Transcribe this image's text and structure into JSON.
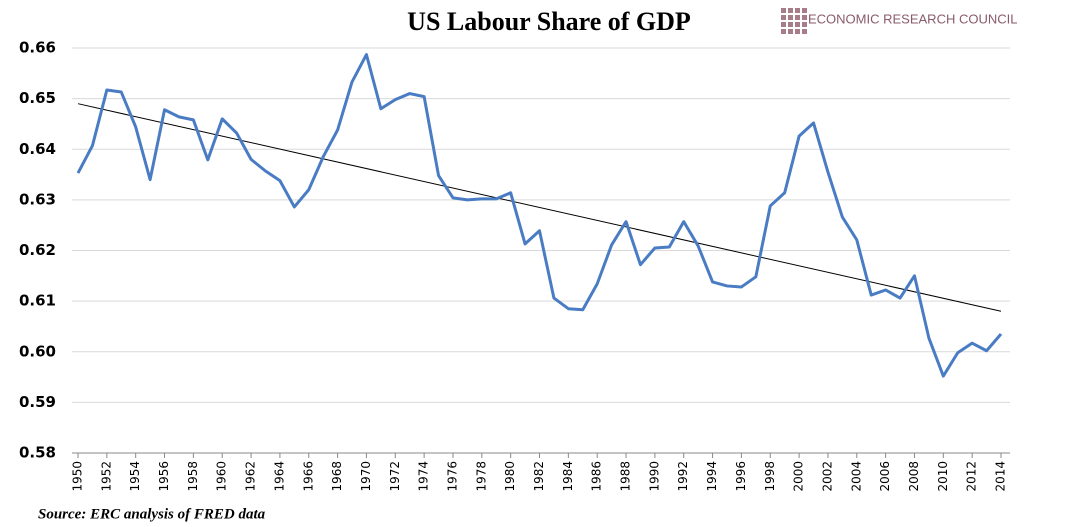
{
  "chart_data": {
    "type": "line",
    "title": "US Labour Share of GDP",
    "brand": "ECONOMIC RESEARCH COUNCIL",
    "source": "Source: ERC analysis of FRED data",
    "x": [
      1950,
      1951,
      1952,
      1953,
      1954,
      1955,
      1956,
      1957,
      1958,
      1959,
      1960,
      1961,
      1962,
      1963,
      1964,
      1965,
      1966,
      1967,
      1968,
      1969,
      1970,
      1971,
      1972,
      1973,
      1974,
      1975,
      1976,
      1977,
      1978,
      1979,
      1980,
      1981,
      1982,
      1983,
      1984,
      1985,
      1986,
      1987,
      1988,
      1989,
      1990,
      1991,
      1992,
      1993,
      1994,
      1995,
      1996,
      1997,
      1998,
      1999,
      2000,
      2001,
      2002,
      2003,
      2004,
      2005,
      2006,
      2007,
      2008,
      2009,
      2010,
      2011,
      2012,
      2013,
      2014
    ],
    "series": [
      {
        "color": "#4a7cc4",
        "values": [
          0.6353,
          0.6407,
          0.6517,
          0.6513,
          0.6444,
          0.634,
          0.6478,
          0.6464,
          0.6458,
          0.6379,
          0.646,
          0.6432,
          0.638,
          0.6357,
          0.6338,
          0.6286,
          0.632,
          0.6385,
          0.6438,
          0.6533,
          0.6587,
          0.648,
          0.6498,
          0.651,
          0.6504,
          0.6348,
          0.6304,
          0.63,
          0.6302,
          0.6302,
          0.6314,
          0.6213,
          0.6239,
          0.6106,
          0.6085,
          0.6083,
          0.6134,
          0.6211,
          0.6257,
          0.6172,
          0.6205,
          0.6207,
          0.6257,
          0.6209,
          0.6138,
          0.613,
          0.6128,
          0.6148,
          0.6288,
          0.6314,
          0.6426,
          0.6452,
          0.6355,
          0.6266,
          0.6221,
          0.6112,
          0.6122,
          0.6106,
          0.615,
          0.6027,
          0.5952,
          0.5998,
          0.6017,
          0.6002,
          0.6035
        ]
      }
    ],
    "trend": {
      "x": [
        1950,
        2014
      ],
      "values": [
        0.649,
        0.608
      ],
      "color": "#000000"
    },
    "xlim": [
      1950,
      2014
    ],
    "xticks": [
      1950,
      1952,
      1954,
      1956,
      1958,
      1960,
      1962,
      1964,
      1966,
      1968,
      1970,
      1972,
      1974,
      1976,
      1978,
      1980,
      1982,
      1984,
      1986,
      1988,
      1990,
      1992,
      1994,
      1996,
      1998,
      2000,
      2002,
      2004,
      2006,
      2008,
      2010,
      2012,
      2014
    ],
    "ylim": [
      0.58,
      0.66
    ],
    "yticks": [
      0.58,
      0.59,
      {
        "value": 0.6,
        "label": "0.60"
      },
      0.61,
      0.62,
      0.63,
      0.64,
      0.65,
      0.66
    ],
    "grid": true
  }
}
